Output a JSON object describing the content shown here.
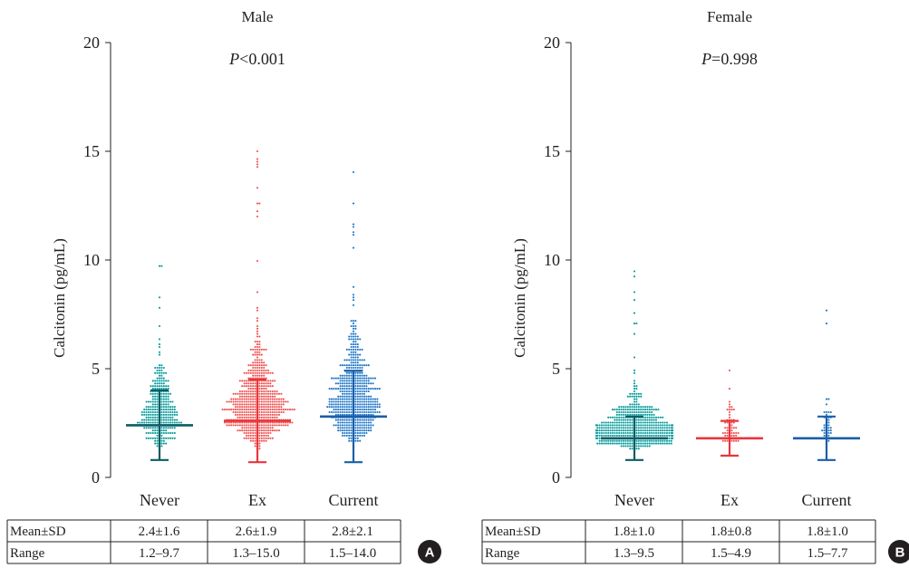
{
  "chart_data": [
    {
      "type": "scatter",
      "title": "Male",
      "annotation": {
        "italic": "P",
        "rest": "<0.001"
      },
      "ylabel": "Calcitonin (pg/mL)",
      "ylim": [
        0,
        20
      ],
      "yticks": [
        "0",
        "5",
        "10",
        "15",
        "20"
      ],
      "categories": [
        "Never",
        "Ex",
        "Current"
      ],
      "colors": [
        "#00999a",
        "#f04e4e",
        "#1a73c6"
      ],
      "summary_colors": [
        "#0d5c63",
        "#e8363c",
        "#1a5ea8"
      ],
      "mean": [
        2.4,
        2.6,
        2.8
      ],
      "sd": [
        1.6,
        1.9,
        2.1
      ],
      "range_min": [
        1.2,
        1.3,
        1.5
      ],
      "range_max": [
        9.7,
        15.0,
        14.0
      ],
      "table": {
        "row_labels": [
          "Mean±SD",
          "Range"
        ],
        "rows": [
          [
            "2.4±1.6",
            "2.6±1.9",
            "2.8±2.1"
          ],
          [
            "1.2–9.7",
            "1.3–15.0",
            "1.5–14.0"
          ]
        ]
      },
      "panel_label": "A"
    },
    {
      "type": "scatter",
      "title": "Female",
      "annotation": {
        "italic": "P",
        "rest": "=0.998"
      },
      "ylabel": "Calcitonin (pg/mL)",
      "ylim": [
        0,
        20
      ],
      "yticks": [
        "0",
        "5",
        "10",
        "15",
        "20"
      ],
      "categories": [
        "Never",
        "Ex",
        "Current"
      ],
      "colors": [
        "#00999a",
        "#f04e4e",
        "#1a73c6"
      ],
      "summary_colors": [
        "#0d5c63",
        "#e8363c",
        "#1a5ea8"
      ],
      "mean": [
        1.8,
        1.8,
        1.8
      ],
      "sd": [
        1.0,
        0.8,
        1.0
      ],
      "range_min": [
        1.3,
        1.5,
        1.5
      ],
      "range_max": [
        9.5,
        4.9,
        7.7
      ],
      "table": {
        "row_labels": [
          "Mean±SD",
          "Range"
        ],
        "rows": [
          [
            "1.8±1.0",
            "1.8±0.8",
            "1.8±1.0"
          ],
          [
            "1.3–9.5",
            "1.5–4.9",
            "1.5–7.7"
          ]
        ]
      },
      "panel_label": "B"
    }
  ]
}
